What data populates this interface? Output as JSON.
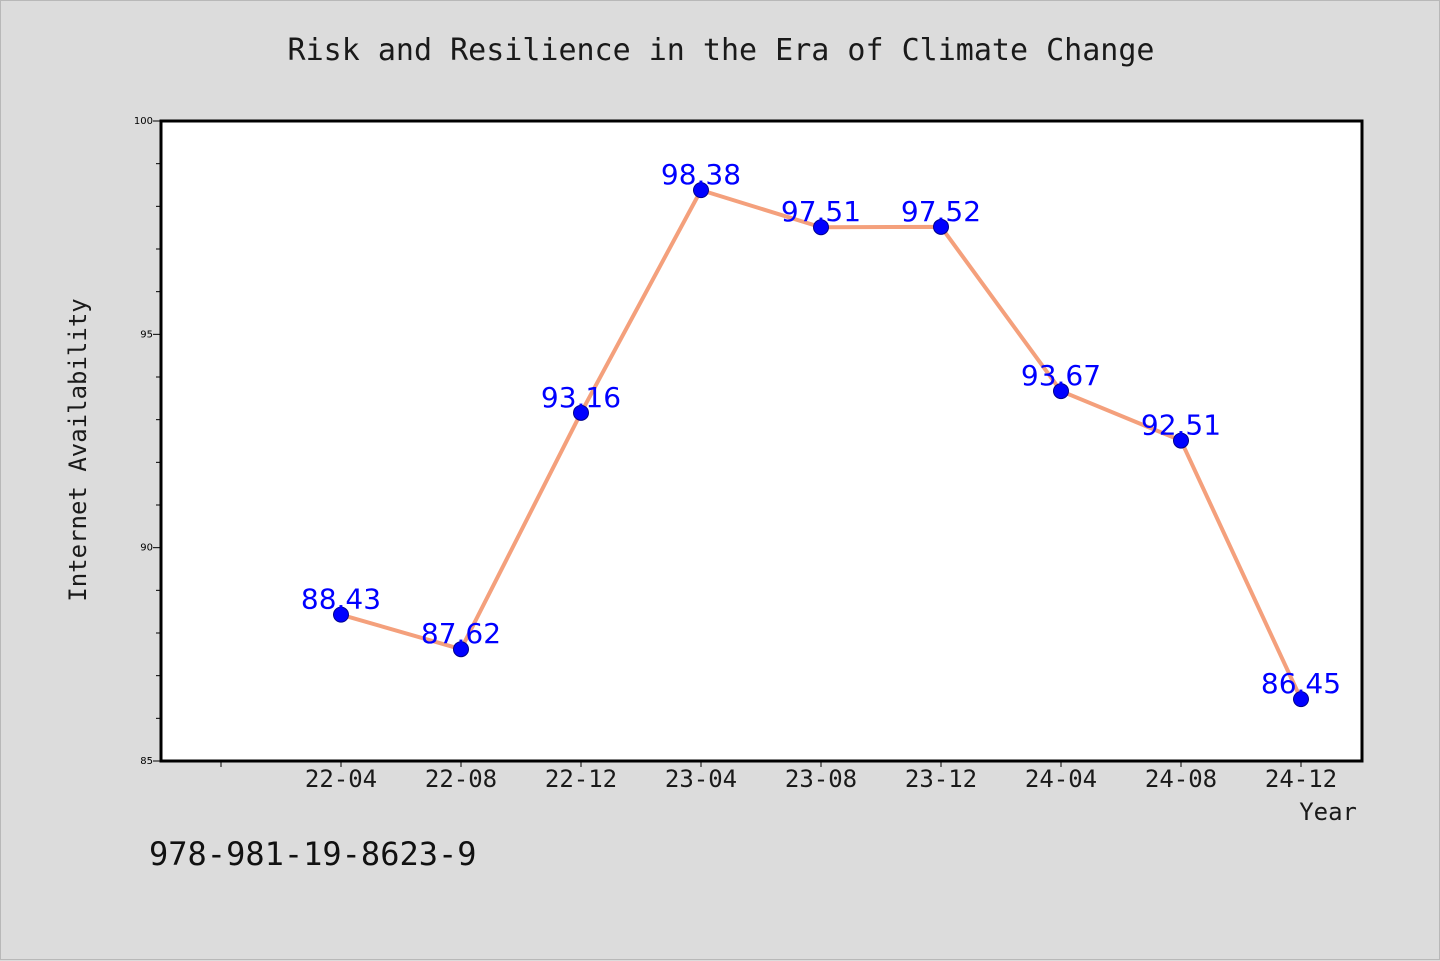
{
  "chart_data": {
    "type": "line",
    "title": "Risk and Resilience in the Era of Climate Change",
    "xlabel": "Year",
    "ylabel": "Internet Availability",
    "categories": [
      "22-04",
      "22-08",
      "22-12",
      "23-04",
      "23-08",
      "23-12",
      "24-04",
      "24-08",
      "24-12"
    ],
    "values": [
      88.43,
      87.62,
      93.16,
      98.38,
      97.51,
      97.52,
      93.67,
      92.51,
      86.45
    ],
    "data_labels": [
      "88.43",
      "87.62",
      "93.16",
      "98.38",
      "97.51",
      "97.52",
      "93.67",
      "92.51",
      "86.45"
    ],
    "ylim": [
      85,
      100
    ],
    "yticks": [
      85,
      90,
      95,
      100
    ],
    "grid": false,
    "colors": {
      "line": "#f4a07c",
      "marker": "#0000ff",
      "label": "#0000ff"
    }
  },
  "footer_text": "978-981-19-8623-9"
}
